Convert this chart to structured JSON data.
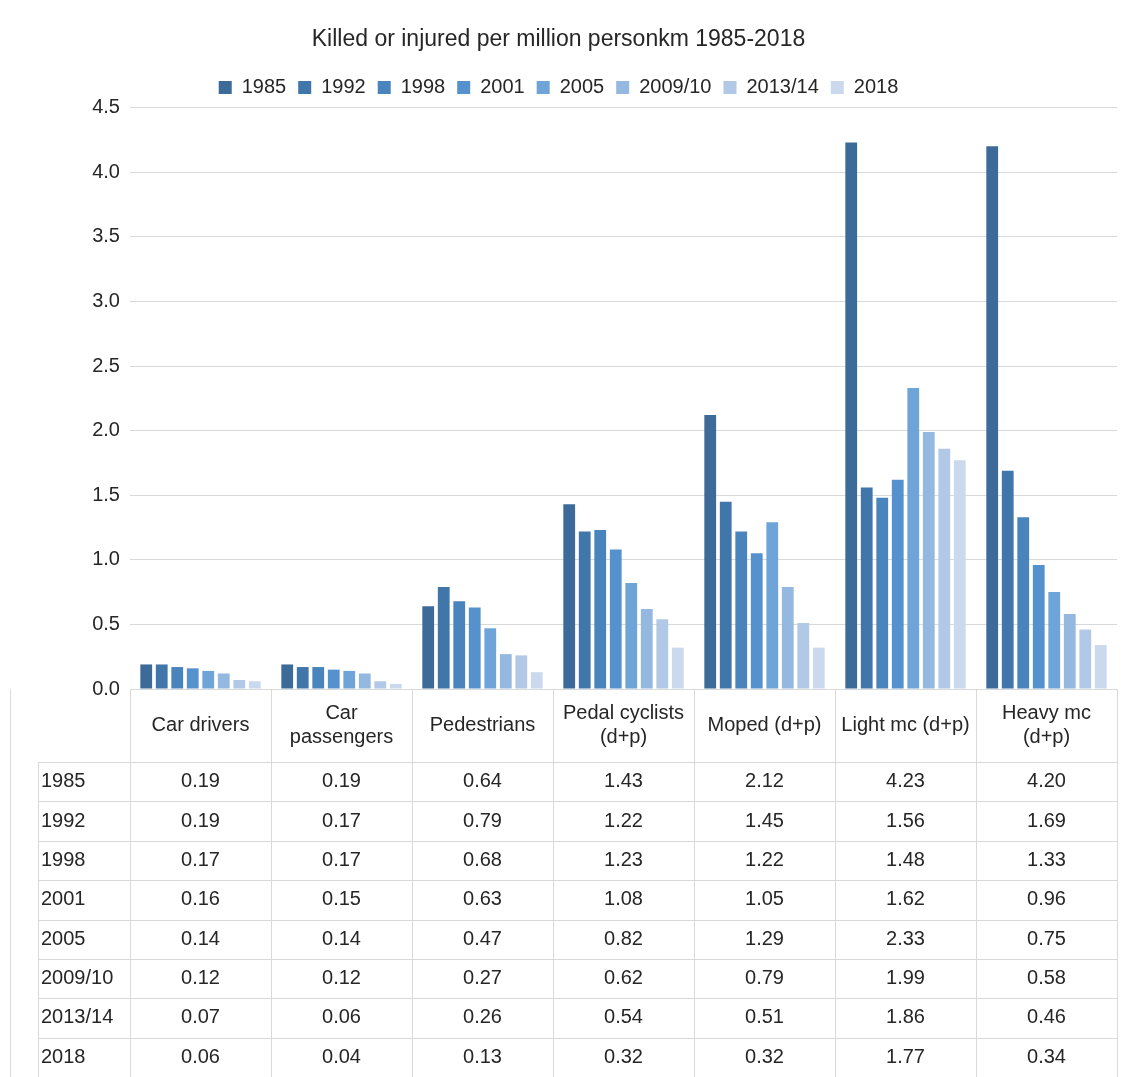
{
  "chart_data": {
    "type": "bar",
    "title": "Killed or injured per million personkm 1985-2018",
    "categories": [
      "Car drivers",
      "Car passengers",
      "Pedestrians",
      "Pedal cyclists (d+p)",
      "Moped (d+p)",
      "Light mc (d+p)",
      "Heavy mc (d+p)"
    ],
    "series": [
      {
        "name": "1985",
        "color": "#3c6a99",
        "values": [
          0.19,
          0.19,
          0.64,
          1.43,
          2.12,
          4.23,
          4.2
        ],
        "value_labels": [
          "0.19",
          "0.19",
          "0.64",
          "1.43",
          "2.12",
          "4.23",
          "4.20"
        ]
      },
      {
        "name": "1992",
        "color": "#4176ab",
        "values": [
          0.19,
          0.17,
          0.79,
          1.22,
          1.45,
          1.56,
          1.69
        ],
        "value_labels": [
          "0.19",
          "0.17",
          "0.79",
          "1.22",
          "1.45",
          "1.56",
          "1.69"
        ]
      },
      {
        "name": "1998",
        "color": "#4a84bd",
        "values": [
          0.17,
          0.17,
          0.68,
          1.23,
          1.22,
          1.48,
          1.33
        ],
        "value_labels": [
          "0.17",
          "0.17",
          "0.68",
          "1.23",
          "1.22",
          "1.48",
          "1.33"
        ]
      },
      {
        "name": "2001",
        "color": "#5592cd",
        "values": [
          0.16,
          0.15,
          0.63,
          1.08,
          1.05,
          1.62,
          0.96
        ],
        "value_labels": [
          "0.16",
          "0.15",
          "0.63",
          "1.08",
          "1.05",
          "1.62",
          "0.96"
        ]
      },
      {
        "name": "2005",
        "color": "#6fa4d9",
        "values": [
          0.14,
          0.14,
          0.47,
          0.82,
          1.29,
          2.33,
          0.75
        ],
        "value_labels": [
          "0.14",
          "0.14",
          "0.47",
          "0.82",
          "1.29",
          "2.33",
          "0.75"
        ]
      },
      {
        "name": "2009/10",
        "color": "#95b8e0",
        "values": [
          0.12,
          0.12,
          0.27,
          0.62,
          0.79,
          1.99,
          0.58
        ],
        "value_labels": [
          "0.12",
          "0.12",
          "0.27",
          "0.62",
          "0.79",
          "1.99",
          "0.58"
        ]
      },
      {
        "name": "2013/14",
        "color": "#b1c8e6",
        "values": [
          0.07,
          0.06,
          0.26,
          0.54,
          0.51,
          1.86,
          0.46
        ],
        "value_labels": [
          "0.07",
          "0.06",
          "0.26",
          "0.54",
          "0.51",
          "1.86",
          "0.46"
        ]
      },
      {
        "name": "2018",
        "color": "#cbd9ee",
        "values": [
          0.06,
          0.04,
          0.13,
          0.32,
          0.32,
          1.77,
          0.34
        ],
        "value_labels": [
          "0.06",
          "0.04",
          "0.13",
          "0.32",
          "0.32",
          "1.77",
          "0.34"
        ]
      }
    ],
    "ylim": [
      0,
      4.5
    ],
    "yticks": [
      {
        "value": 0,
        "label": "0.0"
      },
      {
        "value": 0.5,
        "label": "0.5"
      },
      {
        "value": 1,
        "label": "1.0"
      },
      {
        "value": 1.5,
        "label": "1.5"
      },
      {
        "value": 2,
        "label": "2.0"
      },
      {
        "value": 2.5,
        "label": "2.5"
      },
      {
        "value": 3,
        "label": "3.0"
      },
      {
        "value": 3.5,
        "label": "3.5"
      },
      {
        "value": 4,
        "label": "4.0"
      },
      {
        "value": 4.5,
        "label": "4.5"
      }
    ],
    "grid": "y",
    "legend": "top"
  }
}
